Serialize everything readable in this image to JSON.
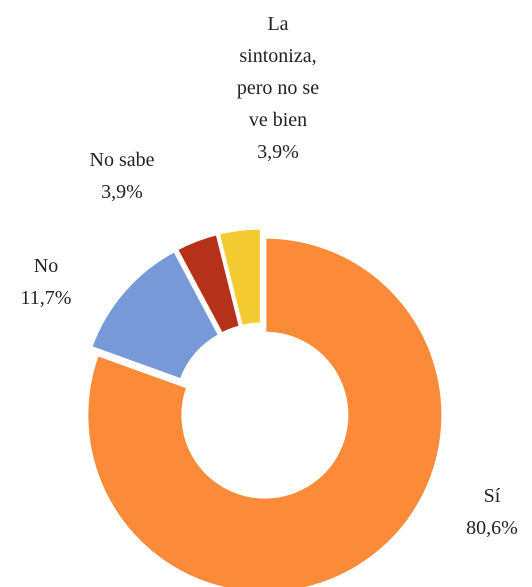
{
  "chart_data": {
    "type": "donut",
    "categories": [
      "Sí",
      "No",
      "No sabe",
      "La sintoniza, pero no se ve bien"
    ],
    "values": [
      80.6,
      11.7,
      3.9,
      3.9
    ],
    "value_labels": [
      "80,6%",
      "11,7%",
      "3,9%",
      "3,9%"
    ],
    "colors": [
      "#fb8a39",
      "#7799d8",
      "#b6311a",
      "#f5cb32"
    ]
  }
}
